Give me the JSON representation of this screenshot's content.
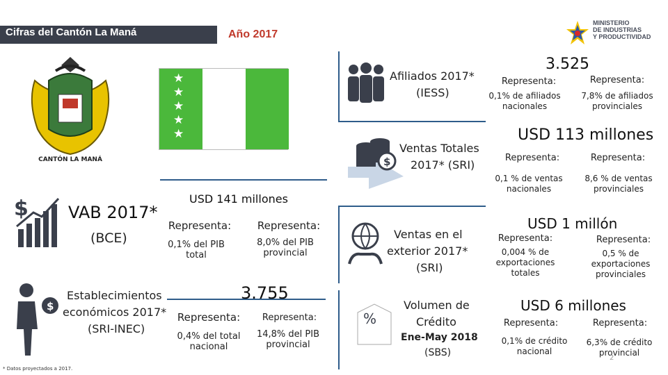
{
  "header": {
    "title": "Cifras del Cantón La Maná",
    "year": "Año 2017"
  },
  "ministry": {
    "line1": "MINISTERIO",
    "line2": "DE INDUSTRIAS",
    "line3": "Y PRODUCTIVIDAD"
  },
  "crest": {
    "motto": "CANTÓN LA MANÁ"
  },
  "vab": {
    "title": "VAB 2017*",
    "source": "(BCE)",
    "amount": "USD 141 millones",
    "rep1_label": "Representa:",
    "rep1_value": "0,1% del PIB total",
    "rep2_label": "Representa:",
    "rep2_value": "8,0% del PIB provincial"
  },
  "establecimientos": {
    "title_line1": "Establecimientos",
    "title_line2": "económicos 2017*",
    "source": "(SRI-INEC)",
    "amount": "3.755",
    "rep1_label": "Representa:",
    "rep1_value": "0,4% del total nacional",
    "rep2_label": "Representa:",
    "rep2_value": "14,8% del PIB provincial"
  },
  "afiliados": {
    "title": "Afiliados 2017*",
    "source": "(IESS)",
    "amount": "3.525",
    "rep1_label": "Representa:",
    "rep1_value": "0,1% de afiliados nacionales",
    "rep2_label": "Representa:",
    "rep2_value": "7,8% de afiliados provinciales"
  },
  "ventas": {
    "title_line1": "Ventas Totales",
    "title_line2": "2017* (SRI)",
    "amount": "USD 113 millones",
    "rep1_label": "Representa:",
    "rep1_value": "0,1 % de ventas nacionales",
    "rep2_label": "Representa:",
    "rep2_value": "8,6 % de ventas provinciales"
  },
  "exterior": {
    "title_line1": "Ventas en el",
    "title_line2": "exterior 2017*",
    "source": "(SRI)",
    "amount": "USD 1 millón",
    "rep1_label": "Representa:",
    "rep1_value": "0,004 % de exportaciones totales",
    "rep2_label": "Representa:",
    "rep2_value": "0,5 % de exportaciones provinciales"
  },
  "credito": {
    "title_line1": "Volumen de",
    "title_line2": "Crédito",
    "period": "Ene-May 2018",
    "source": "(SBS)",
    "amount": "USD 6 millones",
    "rep1_label": "Representa:",
    "rep1_value": "0,1% de crédito nacional",
    "rep2_label": "Representa:",
    "rep2_value": "6,3% de crédito provincial"
  },
  "footnote": "* Datos proyectados a 2017.",
  "page_number": "2",
  "colors": {
    "header_bar": "#3a3f4b",
    "year": "#c0392b",
    "flag_green": "#4bb83b",
    "accent_blue": "#2e5c8a"
  }
}
